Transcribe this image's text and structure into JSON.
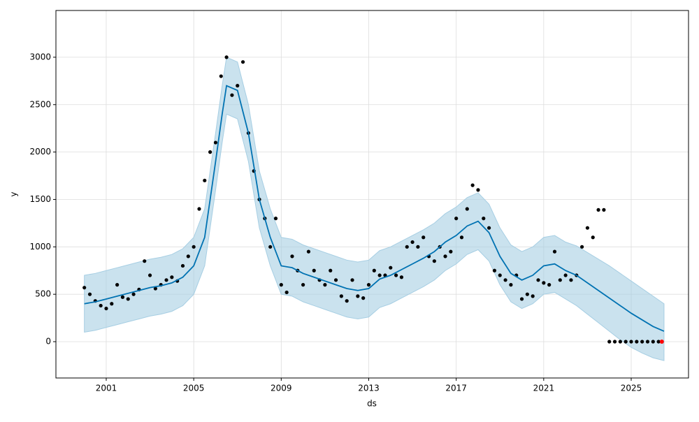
{
  "chart_data": {
    "type": "forecast",
    "xlabel": "ds",
    "ylabel": "y",
    "xlim": [
      1998.7,
      2027.62
    ],
    "ylim": [
      -383,
      3493
    ],
    "xticks": [
      2001,
      2005,
      2009,
      2013,
      2017,
      2021,
      2025
    ],
    "yticks": [
      0,
      500,
      1000,
      1500,
      2000,
      2500,
      3000
    ],
    "grid": true,
    "forecast": {
      "color": "#0072b2",
      "band_color": "#a6cee3",
      "x": [
        2000.0,
        2000.5,
        2001.0,
        2001.5,
        2002.0,
        2002.5,
        2003.0,
        2003.5,
        2004.0,
        2004.5,
        2005.0,
        2005.5,
        2006.0,
        2006.3,
        2006.5,
        2007.0,
        2007.5,
        2008.0,
        2008.5,
        2009.0,
        2009.5,
        2010.0,
        2010.5,
        2011.0,
        2011.5,
        2012.0,
        2012.5,
        2013.0,
        2013.5,
        2014.0,
        2014.5,
        2015.0,
        2015.5,
        2016.0,
        2016.5,
        2017.0,
        2017.5,
        2018.0,
        2018.5,
        2019.0,
        2019.5,
        2020.0,
        2020.5,
        2021.0,
        2021.5,
        2022.0,
        2022.5,
        2023.0,
        2023.5,
        2024.0,
        2024.5,
        2025.0,
        2025.5,
        2026.0,
        2026.5
      ],
      "yhat": [
        400,
        420,
        450,
        480,
        510,
        540,
        570,
        590,
        620,
        680,
        800,
        1100,
        1900,
        2400,
        2700,
        2650,
        2200,
        1500,
        1100,
        800,
        780,
        720,
        680,
        640,
        600,
        560,
        540,
        560,
        660,
        700,
        760,
        820,
        880,
        950,
        1050,
        1120,
        1220,
        1270,
        1150,
        900,
        720,
        650,
        700,
        800,
        820,
        750,
        700,
        620,
        540,
        460,
        380,
        300,
        230,
        160,
        110
      ],
      "lower": [
        100,
        120,
        150,
        180,
        210,
        240,
        270,
        290,
        320,
        380,
        500,
        800,
        1600,
        2100,
        2400,
        2350,
        1900,
        1200,
        800,
        500,
        480,
        420,
        380,
        340,
        300,
        260,
        240,
        260,
        360,
        400,
        460,
        520,
        580,
        650,
        750,
        820,
        920,
        970,
        850,
        600,
        420,
        350,
        400,
        500,
        520,
        450,
        380,
        290,
        200,
        110,
        20,
        -60,
        -120,
        -170,
        -200
      ],
      "upper": [
        700,
        720,
        750,
        780,
        810,
        840,
        870,
        890,
        920,
        980,
        1100,
        1400,
        2200,
        2700,
        3000,
        2950,
        2500,
        1800,
        1400,
        1100,
        1080,
        1020,
        980,
        940,
        900,
        860,
        840,
        860,
        960,
        1000,
        1060,
        1120,
        1180,
        1250,
        1350,
        1420,
        1520,
        1570,
        1450,
        1200,
        1020,
        950,
        1000,
        1100,
        1120,
        1050,
        1010,
        940,
        870,
        800,
        720,
        640,
        560,
        480,
        400
      ]
    },
    "observed": {
      "color": "#000000",
      "x": [
        2000.0,
        2000.25,
        2000.5,
        2000.75,
        2001.0,
        2001.25,
        2001.5,
        2001.75,
        2002.0,
        2002.25,
        2002.5,
        2002.75,
        2003.0,
        2003.25,
        2003.5,
        2003.75,
        2004.0,
        2004.25,
        2004.5,
        2004.75,
        2005.0,
        2005.25,
        2005.5,
        2005.75,
        2006.0,
        2006.25,
        2006.5,
        2006.75,
        2007.0,
        2007.25,
        2007.5,
        2007.75,
        2008.0,
        2008.25,
        2008.5,
        2008.75,
        2009.0,
        2009.25,
        2009.5,
        2009.75,
        2010.0,
        2010.25,
        2010.5,
        2010.75,
        2011.0,
        2011.25,
        2011.5,
        2011.75,
        2012.0,
        2012.25,
        2012.5,
        2012.75,
        2013.0,
        2013.25,
        2013.5,
        2013.75,
        2014.0,
        2014.25,
        2014.5,
        2014.75,
        2015.0,
        2015.25,
        2015.5,
        2015.75,
        2016.0,
        2016.25,
        2016.5,
        2016.75,
        2017.0,
        2017.25,
        2017.5,
        2017.75,
        2018.0,
        2018.25,
        2018.5,
        2018.75,
        2019.0,
        2019.25,
        2019.5,
        2019.75,
        2020.0,
        2020.25,
        2020.5,
        2020.75,
        2021.0,
        2021.25,
        2021.5,
        2021.75,
        2022.0,
        2022.25,
        2022.5,
        2022.75,
        2023.0,
        2023.25,
        2023.5,
        2023.75,
        2024.0,
        2024.25,
        2024.5,
        2024.75,
        2025.0,
        2025.25,
        2025.5,
        2025.75,
        2026.0,
        2026.25
      ],
      "y": [
        570,
        500,
        430,
        380,
        350,
        400,
        600,
        470,
        450,
        500,
        550,
        850,
        700,
        560,
        600,
        650,
        680,
        640,
        800,
        900,
        1000,
        1400,
        1700,
        2000,
        2100,
        2800,
        3000,
        2600,
        2700,
        2950,
        2200,
        1800,
        1500,
        1300,
        1000,
        1300,
        600,
        520,
        900,
        750,
        600,
        950,
        750,
        650,
        600,
        750,
        650,
        480,
        430,
        650,
        480,
        460,
        600,
        750,
        700,
        700,
        780,
        700,
        680,
        1000,
        1050,
        1000,
        1100,
        900,
        850,
        1000,
        900,
        950,
        1300,
        1100,
        1400,
        1650,
        1600,
        1300,
        1200,
        750,
        700,
        650,
        600,
        700,
        450,
        500,
        480,
        650,
        620,
        600,
        950,
        650,
        700,
        650,
        700,
        1000,
        1200,
        1100,
        1390,
        1390,
        0,
        0,
        0,
        0,
        0,
        0,
        0,
        0,
        0,
        0
      ]
    },
    "highlight": {
      "color": "#ff0000",
      "x": [
        2026.4
      ],
      "y": [
        0
      ]
    }
  }
}
